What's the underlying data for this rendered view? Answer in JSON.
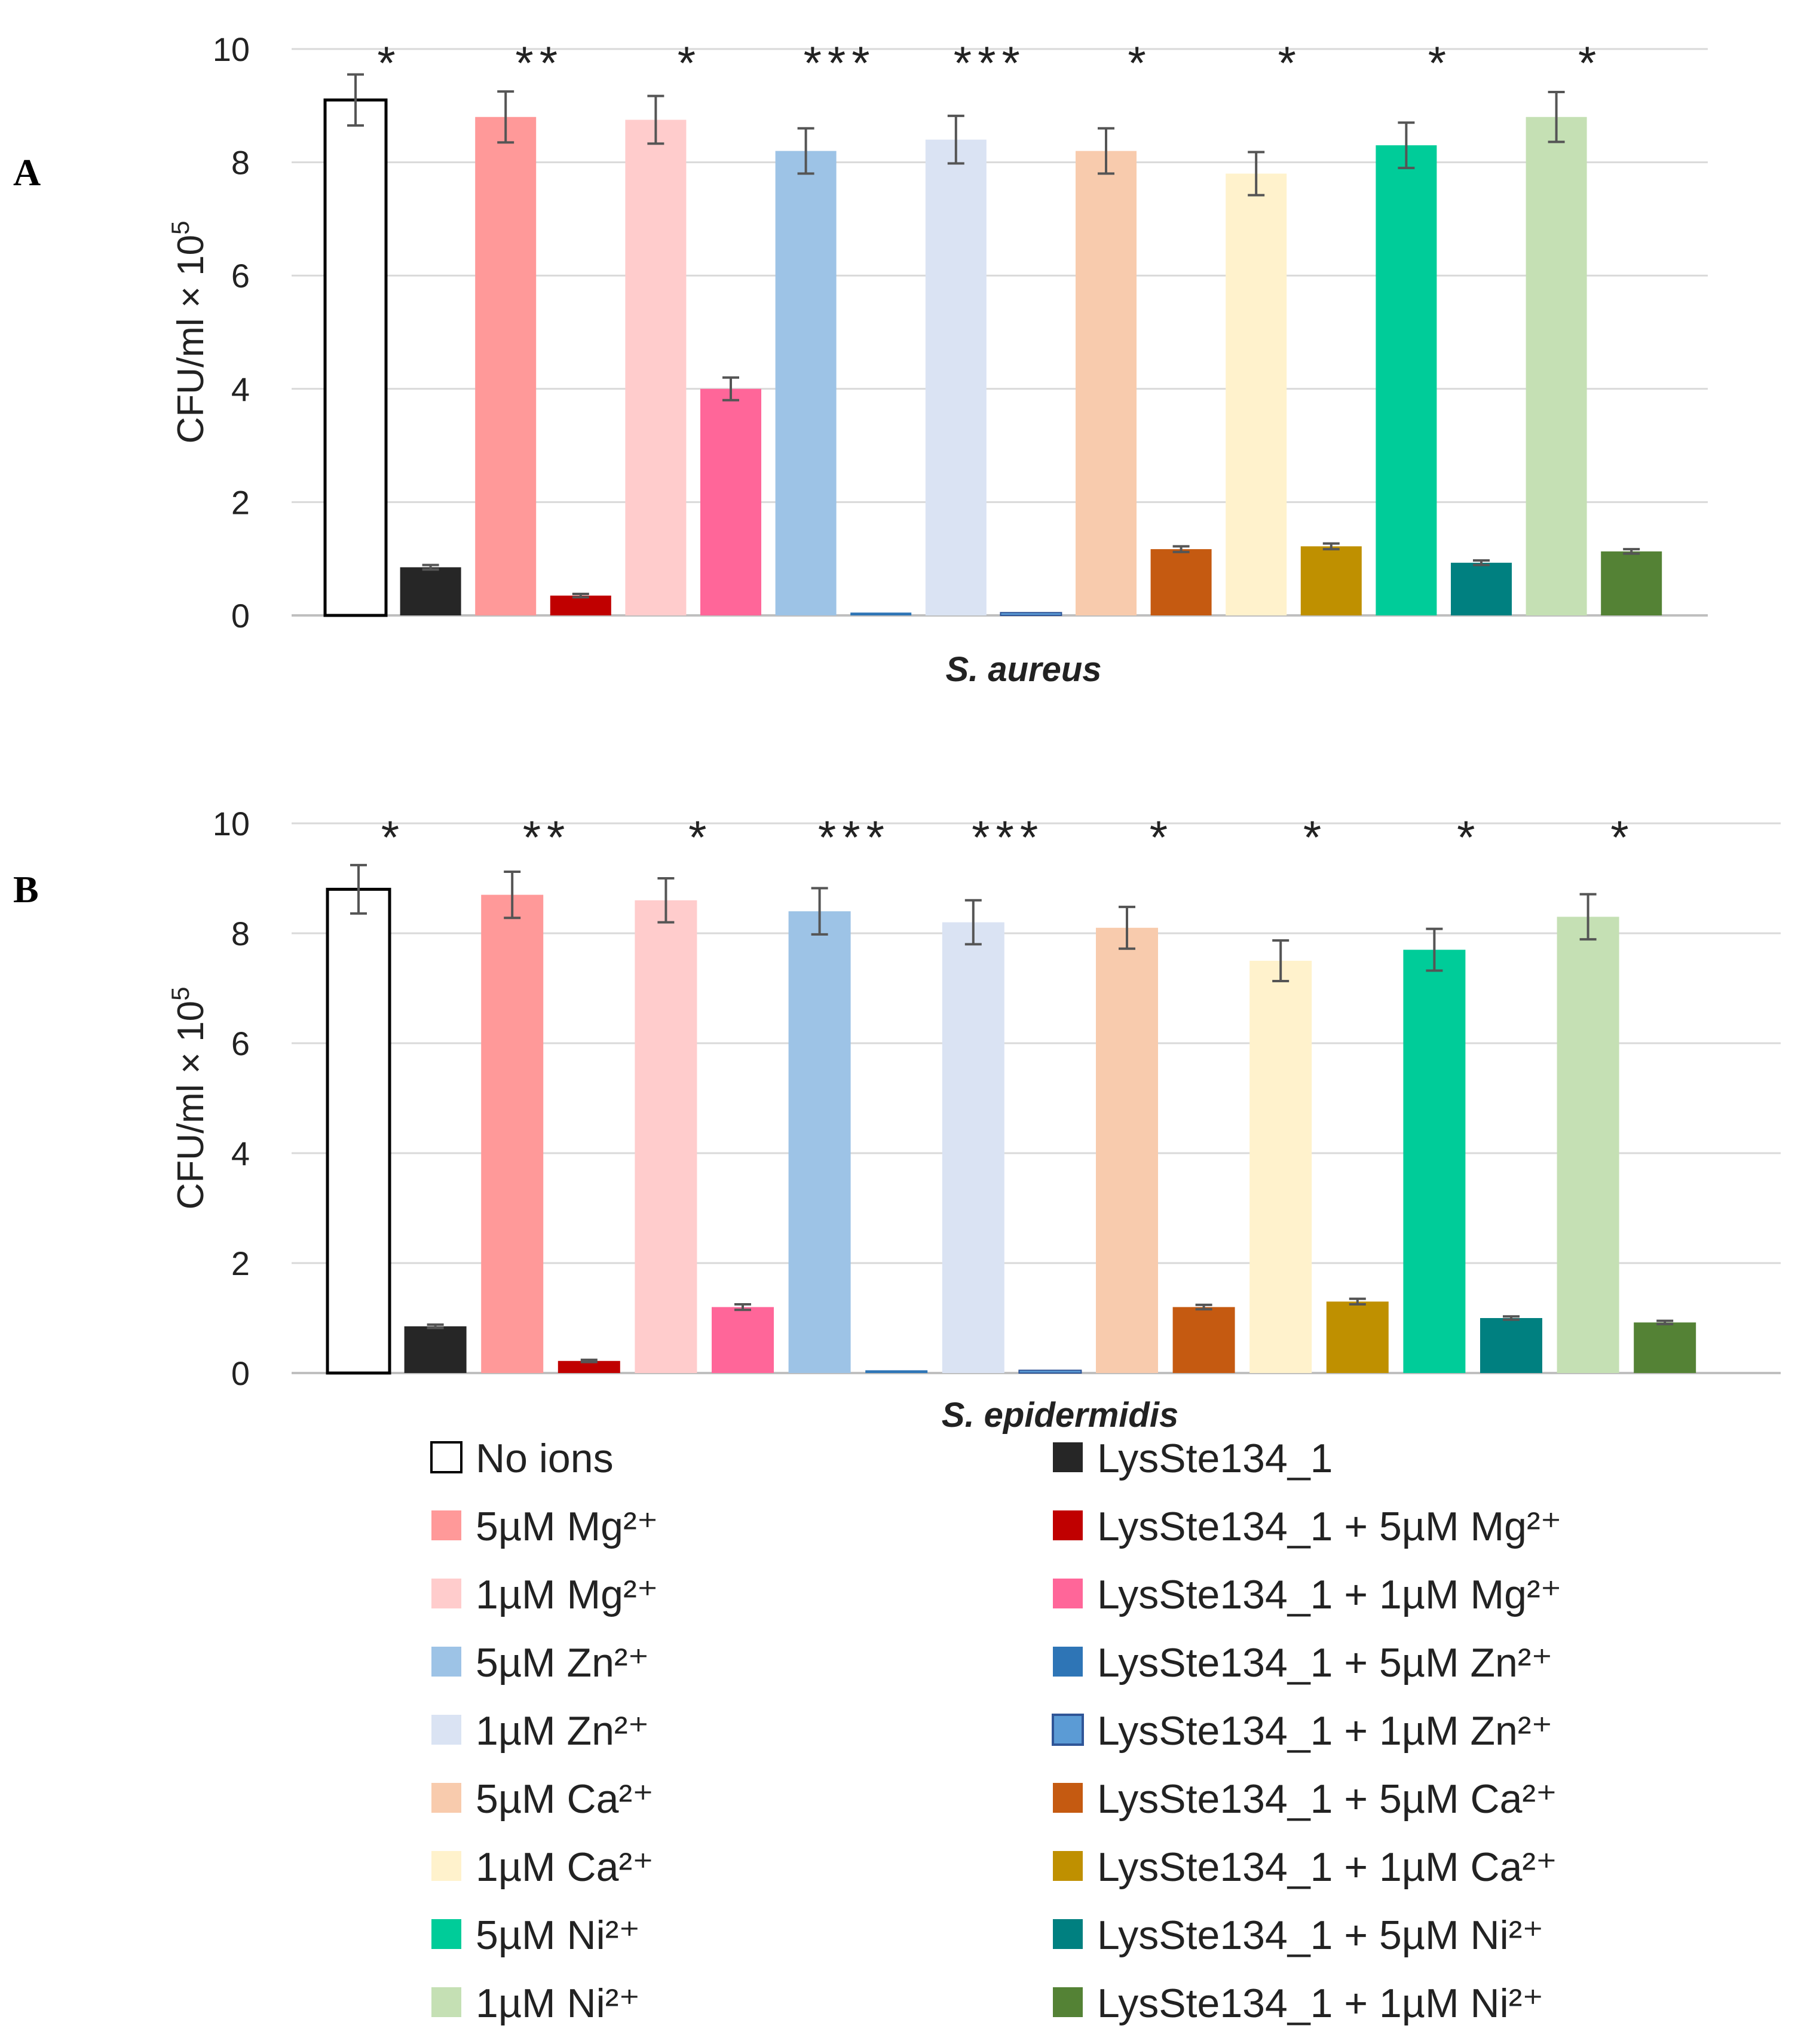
{
  "chart_data": [
    {
      "panel": "A",
      "type": "bar",
      "xlabel": "S. aureus",
      "ylabel": "CFU/ml × 10",
      "ylabel_exponent": "5",
      "ylim": [
        0,
        10
      ],
      "yticks": [
        "0",
        "2",
        "4",
        "6",
        "8",
        "10"
      ],
      "values": [
        9.1,
        0.85,
        8.8,
        0.35,
        8.75,
        4.0,
        8.2,
        0.05,
        8.4,
        0.05,
        8.2,
        1.17,
        7.8,
        1.22,
        8.3,
        0.93,
        8.8,
        1.13
      ],
      "errors": [
        0.45,
        0.04,
        0.45,
        0.03,
        0.42,
        0.2,
        0.4,
        0.0,
        0.42,
        0.0,
        0.4,
        0.05,
        0.38,
        0.05,
        0.4,
        0.04,
        0.44,
        0.04
      ],
      "significance": [
        "*",
        "**",
        "*",
        "***",
        "***",
        "*",
        "*",
        "*",
        "*"
      ]
    },
    {
      "panel": "B",
      "type": "bar",
      "xlabel": "S. epidermidis",
      "ylabel": "CFU/ml × 10",
      "ylabel_exponent": "5",
      "ylim": [
        0,
        10
      ],
      "yticks": [
        "0",
        "2",
        "4",
        "6",
        "8",
        "10"
      ],
      "values": [
        8.8,
        0.85,
        8.7,
        0.22,
        8.6,
        1.2,
        8.4,
        0.05,
        8.2,
        0.05,
        8.1,
        1.2,
        7.5,
        1.3,
        7.7,
        1.0,
        8.3,
        0.92
      ],
      "errors": [
        0.44,
        0.03,
        0.42,
        0.02,
        0.4,
        0.05,
        0.42,
        0.0,
        0.4,
        0.0,
        0.38,
        0.04,
        0.37,
        0.05,
        0.38,
        0.03,
        0.41,
        0.03
      ],
      "significance": [
        "*",
        "**",
        "*",
        "***",
        "***",
        "*",
        "*",
        "*",
        "*"
      ]
    }
  ],
  "series": [
    {
      "label": "No ions",
      "color": "#ffffff",
      "stroke": "#000000"
    },
    {
      "label": "LysSte134_1",
      "color": "#262626"
    },
    {
      "label": "5µM Mg²⁺",
      "color": "#ff9999"
    },
    {
      "label": "LysSte134_1 + 5µM Mg²⁺",
      "color": "#c00000"
    },
    {
      "label": "1µM Mg²⁺",
      "color": "#ffcccc"
    },
    {
      "label": "LysSte134_1 + 1µM Mg²⁺",
      "color": "#ff6699"
    },
    {
      "label": "5µM Zn²⁺",
      "color": "#9dc3e6"
    },
    {
      "label": "LysSte134_1 + 5µM Zn²⁺",
      "color": "#2e75b6"
    },
    {
      "label": "1µM Zn²⁺",
      "color": "#dae3f3"
    },
    {
      "label": "LysSte134_1 + 1µM Zn²⁺",
      "color": "#5b9bd5",
      "stroke": "#2f5597"
    },
    {
      "label": "5µM Ca²⁺",
      "color": "#f8cbad"
    },
    {
      "label": "LysSte134_1 + 5µM Ca²⁺",
      "color": "#c55a11"
    },
    {
      "label": "1µM Ca²⁺",
      "color": "#fff2cc"
    },
    {
      "label": "LysSte134_1 + 1µM Ca²⁺",
      "color": "#bf9000"
    },
    {
      "label": "5µM Ni²⁺",
      "color": "#00cc99"
    },
    {
      "label": "LysSte134_1 + 5µM Ni²⁺",
      "color": "#008080"
    },
    {
      "label": "1µM Ni²⁺",
      "color": "#c5e0b4"
    },
    {
      "label": "LysSte134_1 + 1µM Ni²⁺",
      "color": "#548235"
    }
  ]
}
